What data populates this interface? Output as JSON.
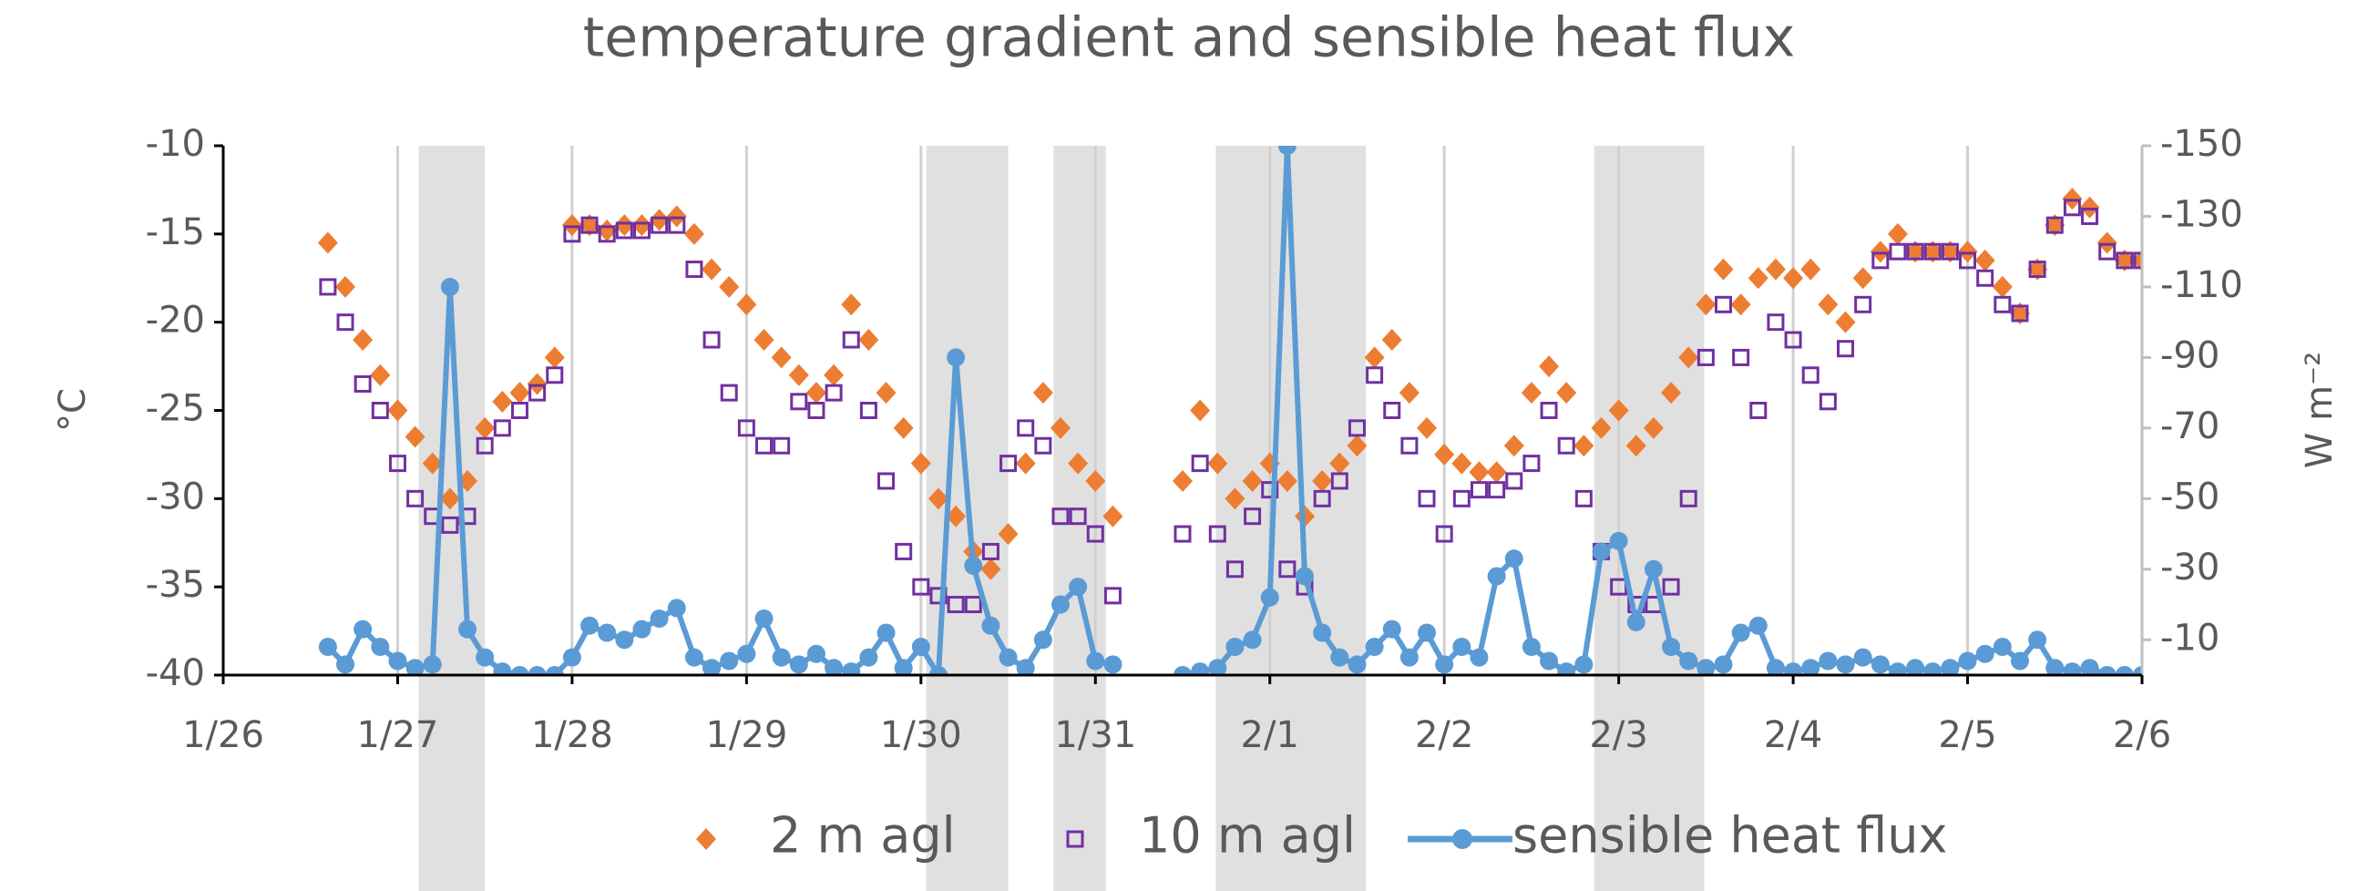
{
  "chart_data": {
    "type": "scatter",
    "title": "temperature gradient and sensible heat flux",
    "ylabel": "°C",
    "y2label": "W m⁻²",
    "xlim": [
      0,
      11
    ],
    "xticks": [
      {
        "value": 0,
        "label": "1/26"
      },
      {
        "value": 1,
        "label": "1/27"
      },
      {
        "value": 2,
        "label": "1/28"
      },
      {
        "value": 3,
        "label": "1/29"
      },
      {
        "value": 4,
        "label": "1/30"
      },
      {
        "value": 5,
        "label": "1/31"
      },
      {
        "value": 6,
        "label": "2/1"
      },
      {
        "value": 7,
        "label": "2/2"
      },
      {
        "value": 8,
        "label": "2/3"
      },
      {
        "value": 9,
        "label": "2/4"
      },
      {
        "value": 10,
        "label": "2/5"
      },
      {
        "value": 11,
        "label": "2/6"
      }
    ],
    "ylim": [
      -40,
      -10
    ],
    "yticks": [
      -40,
      -35,
      -30,
      -25,
      -20,
      -15,
      -10
    ],
    "y2lim": [
      0,
      -150
    ],
    "y2ticks": [
      -10,
      -30,
      -50,
      -70,
      -90,
      -110,
      -130,
      -150
    ],
    "grid": "x",
    "shaded_regions": [
      [
        1.12,
        1.5
      ],
      [
        4.03,
        4.5
      ],
      [
        4.76,
        5.06
      ],
      [
        5.69,
        6.55
      ],
      [
        7.86,
        8.49
      ]
    ],
    "shade_color": "#e0e0e0",
    "legend": "bottom",
    "x": [
      0.6,
      0.7,
      0.8,
      0.9,
      1.0,
      1.1,
      1.2,
      1.3,
      1.4,
      1.5,
      1.6,
      1.7,
      1.8,
      1.9,
      2.0,
      2.1,
      2.2,
      2.3,
      2.4,
      2.5,
      2.6,
      2.7,
      2.8,
      2.9,
      3.0,
      3.1,
      3.2,
      3.3,
      3.4,
      3.5,
      3.6,
      3.7,
      3.8,
      3.9,
      4.0,
      4.1,
      4.2,
      4.3,
      4.4,
      4.5,
      4.6,
      4.7,
      4.8,
      4.9,
      5.0,
      5.1,
      5.2,
      5.3,
      5.4,
      5.5,
      5.6,
      5.7,
      5.8,
      5.9,
      6.0,
      6.1,
      6.2,
      6.3,
      6.4,
      6.5,
      6.6,
      6.7,
      6.8,
      6.9,
      7.0,
      7.1,
      7.2,
      7.3,
      7.4,
      7.5,
      7.6,
      7.7,
      7.8,
      7.9,
      8.0,
      8.1,
      8.2,
      8.3,
      8.4,
      8.5,
      8.6,
      8.7,
      8.8,
      8.9,
      9.0,
      9.1,
      9.2,
      9.3,
      9.4,
      9.5,
      9.6,
      9.7,
      9.8,
      9.9,
      10.0,
      10.1,
      10.2,
      10.3,
      10.4,
      10.5,
      10.6,
      10.7,
      10.8,
      10.9,
      11.0
    ],
    "series": [
      {
        "name": "2 m agl",
        "color": "#ed7d31",
        "marker": "diamond",
        "values": [
          -15.5,
          -18,
          -21,
          -23,
          -25,
          -26.5,
          -28,
          -30,
          -29,
          -26,
          -24.5,
          -24,
          -23.5,
          -22,
          -14.5,
          -14.5,
          -14.8,
          -14.5,
          -14.5,
          -14.2,
          -14,
          -15,
          -17,
          -18,
          -19,
          -21,
          -22,
          -23,
          -24,
          -23,
          -19,
          -21,
          -24,
          -26,
          -28,
          -30,
          -31,
          -33,
          -34,
          -32,
          -28,
          -24,
          -26,
          -28,
          -29,
          -31,
          null,
          null,
          null,
          -29,
          -25,
          -28,
          -30,
          -29,
          -28,
          -29,
          -31,
          -29,
          -28,
          -27,
          -22,
          -21,
          -24,
          -26,
          -27.5,
          -28,
          -28.5,
          -28.5,
          -27,
          -24,
          -22.5,
          -24,
          -27,
          -26,
          -25,
          -27,
          -26,
          -24,
          -22,
          -19,
          -17,
          -19,
          -17.5,
          -17,
          -17.5,
          -17,
          -19,
          -20,
          -17.5,
          -16,
          -15,
          -16,
          -16,
          -16,
          -16,
          -16.5,
          -18,
          -19.5,
          -17,
          -14.5,
          -13,
          -13.5,
          -15.5,
          -16.5,
          -16.5
        ]
      },
      {
        "name": "10 m agl",
        "color": "#7030a0",
        "marker": "square",
        "values": [
          -18,
          -20,
          -23.5,
          -25,
          -28,
          -30,
          -31,
          -31.5,
          -31,
          -27,
          -26,
          -25,
          -24,
          -23,
          -15,
          -14.5,
          -15,
          -14.8,
          -14.8,
          -14.5,
          -14.5,
          -17,
          -21,
          -24,
          -26,
          -27,
          -27,
          -24.5,
          -25,
          -24,
          -21,
          -25,
          -29,
          -33,
          -35,
          -35.5,
          -36,
          -36,
          -33,
          -28,
          -26,
          -27,
          -31,
          -31,
          -32,
          -35.5,
          null,
          null,
          null,
          -32,
          -28,
          -32,
          -34,
          -31,
          -29.5,
          -34,
          -35,
          -30,
          -29,
          -26,
          -23,
          -25,
          -27,
          -30,
          -32,
          -30,
          -29.5,
          -29.5,
          -29,
          -28,
          -25,
          -27,
          -30,
          -33,
          -35,
          -36,
          -36,
          -35,
          -30,
          -22,
          -19,
          -22,
          -25,
          -20,
          -21,
          -23,
          -24.5,
          -21.5,
          -19,
          -16.5,
          -16,
          -16,
          -16,
          -16,
          -16.5,
          -17.5,
          -19,
          -19.5,
          -17,
          -14.5,
          -13.5,
          -14,
          -16,
          -16.5,
          -16.5
        ]
      },
      {
        "name": "sensible heat flux",
        "color": "#5b9bd5",
        "marker": "line",
        "axis": "y2",
        "values": [
          -8,
          -3,
          -13,
          -8,
          -4,
          -2,
          -3,
          -110,
          -13,
          -5,
          -1,
          0,
          0,
          0,
          -5,
          -14,
          -12,
          -10,
          -13,
          -16,
          -19,
          -5,
          -2,
          -4,
          -6,
          -16,
          -5,
          -3,
          -6,
          -2,
          -1,
          -5,
          -12,
          -2,
          -8,
          0,
          -90,
          -31,
          -14,
          -5,
          -2,
          -10,
          -20,
          -25,
          -4,
          -3,
          null,
          null,
          null,
          0,
          -1,
          -2,
          -8,
          -10,
          -22,
          -150,
          -28,
          -12,
          -5,
          -3,
          -8,
          -13,
          -5,
          -12,
          -3,
          -8,
          -5,
          -28,
          -33,
          -8,
          -4,
          -1,
          -3,
          -35,
          -38,
          -15,
          -30,
          -8,
          -4,
          -2,
          -3,
          -12,
          -14,
          -2,
          -1,
          -2,
          -4,
          -3,
          -5,
          -3,
          -1,
          -2,
          -1,
          -2,
          -4,
          -6,
          -8,
          -4,
          -10,
          -2,
          -1,
          -2,
          0,
          0,
          0
        ]
      }
    ]
  }
}
